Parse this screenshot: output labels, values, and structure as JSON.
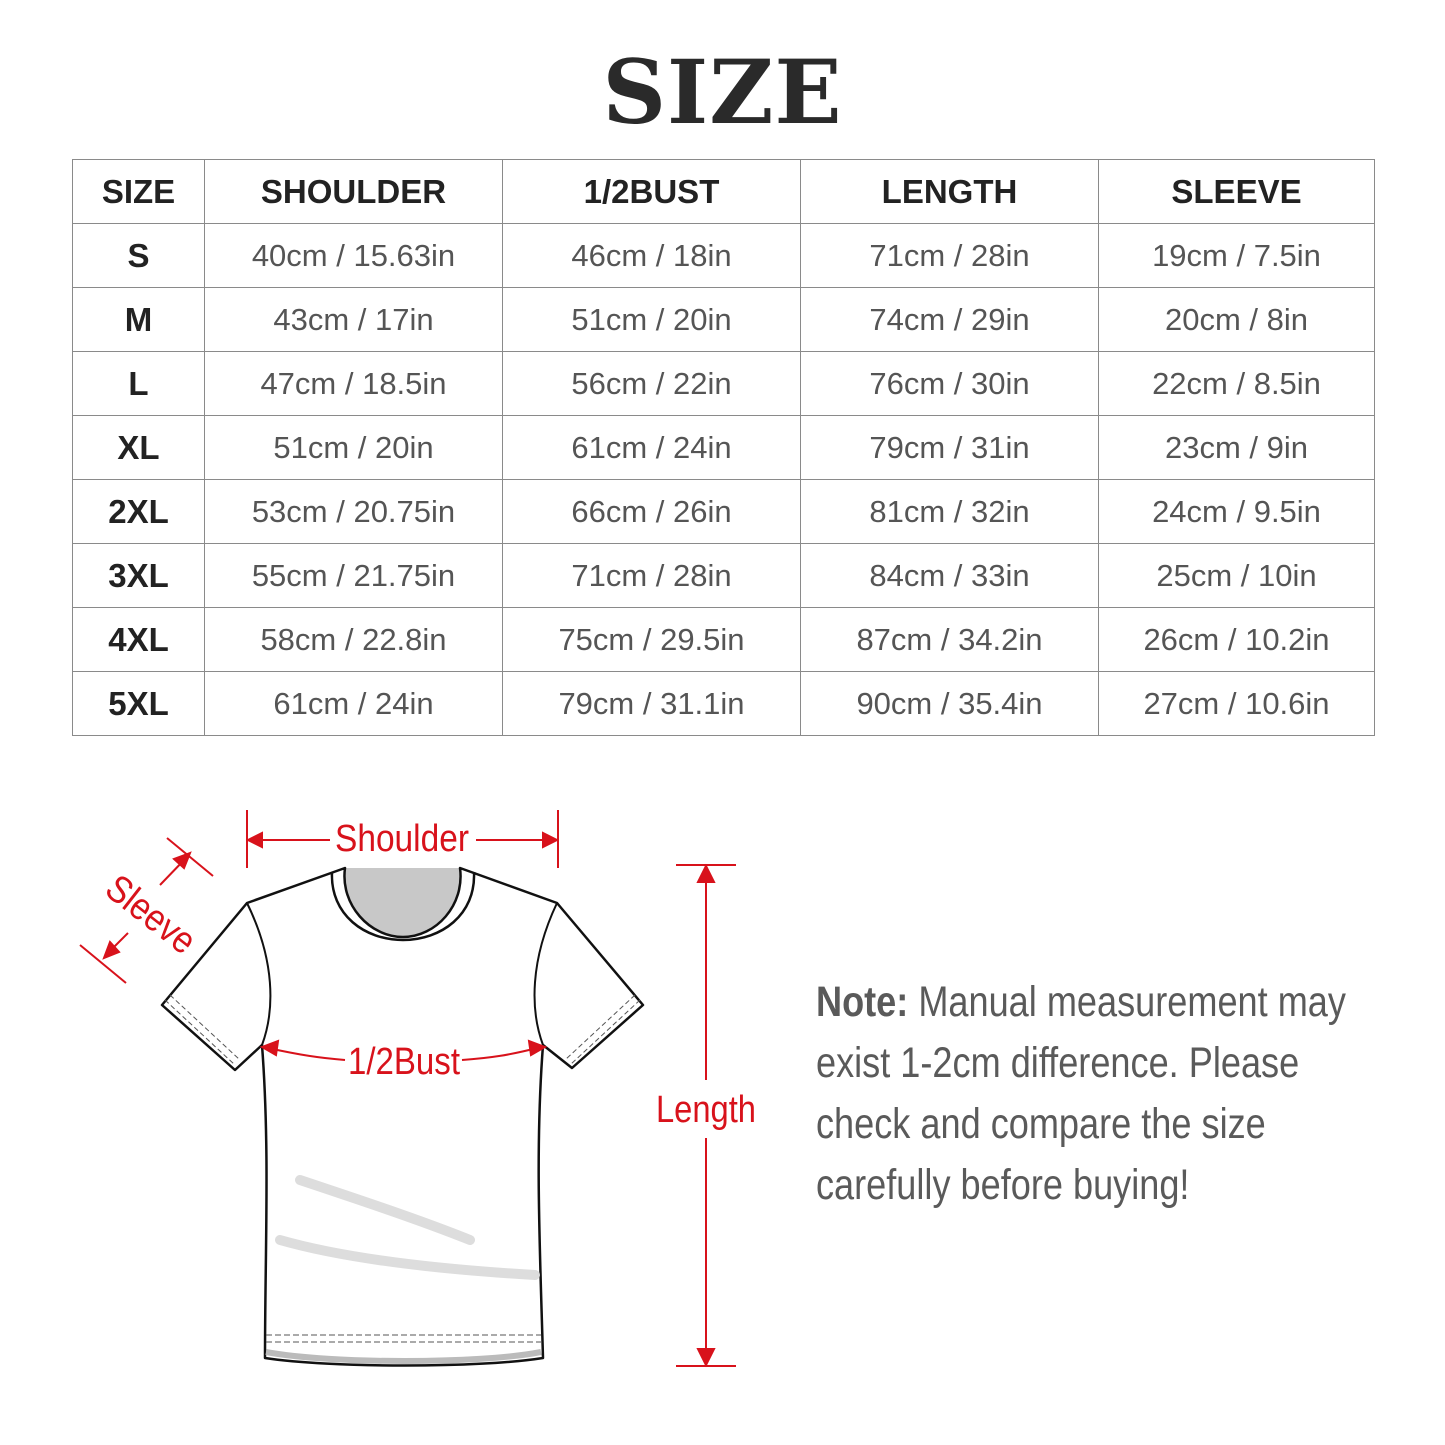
{
  "title": "SIZE",
  "table": {
    "headers": [
      "SIZE",
      "SHOULDER",
      "1/2BUST",
      "LENGTH",
      "SLEEVE"
    ],
    "rows": [
      [
        "S",
        "40cm / 15.63in",
        "46cm / 18in",
        "71cm / 28in",
        "19cm / 7.5in"
      ],
      [
        "M",
        "43cm / 17in",
        "51cm / 20in",
        "74cm / 29in",
        "20cm / 8in"
      ],
      [
        "L",
        "47cm / 18.5in",
        "56cm / 22in",
        "76cm / 30in",
        "22cm / 8.5in"
      ],
      [
        "XL",
        "51cm / 20in",
        "61cm / 24in",
        "79cm / 31in",
        "23cm / 9in"
      ],
      [
        "2XL",
        "53cm / 20.75in",
        "66cm / 26in",
        "81cm / 32in",
        "24cm / 9.5in"
      ],
      [
        "3XL",
        "55cm / 21.75in",
        "71cm / 28in",
        "84cm / 33in",
        "25cm / 10in"
      ],
      [
        "4XL",
        "58cm / 22.8in",
        "75cm / 29.5in",
        "87cm / 34.2in",
        "26cm / 10.2in"
      ],
      [
        "5XL",
        "61cm / 24in",
        "79cm / 31.1in",
        "90cm / 35.4in",
        "27cm / 10.6in"
      ]
    ]
  },
  "diagram": {
    "shoulder": "Shoulder",
    "sleeve": "Sleeve",
    "bust": "1/2Bust",
    "length": "Length",
    "accent": "#d8121b"
  },
  "note": {
    "label": "Note:",
    "text": " Manual measurement may exist 1-2cm difference. Please check and compare the size carefully before buying!"
  }
}
